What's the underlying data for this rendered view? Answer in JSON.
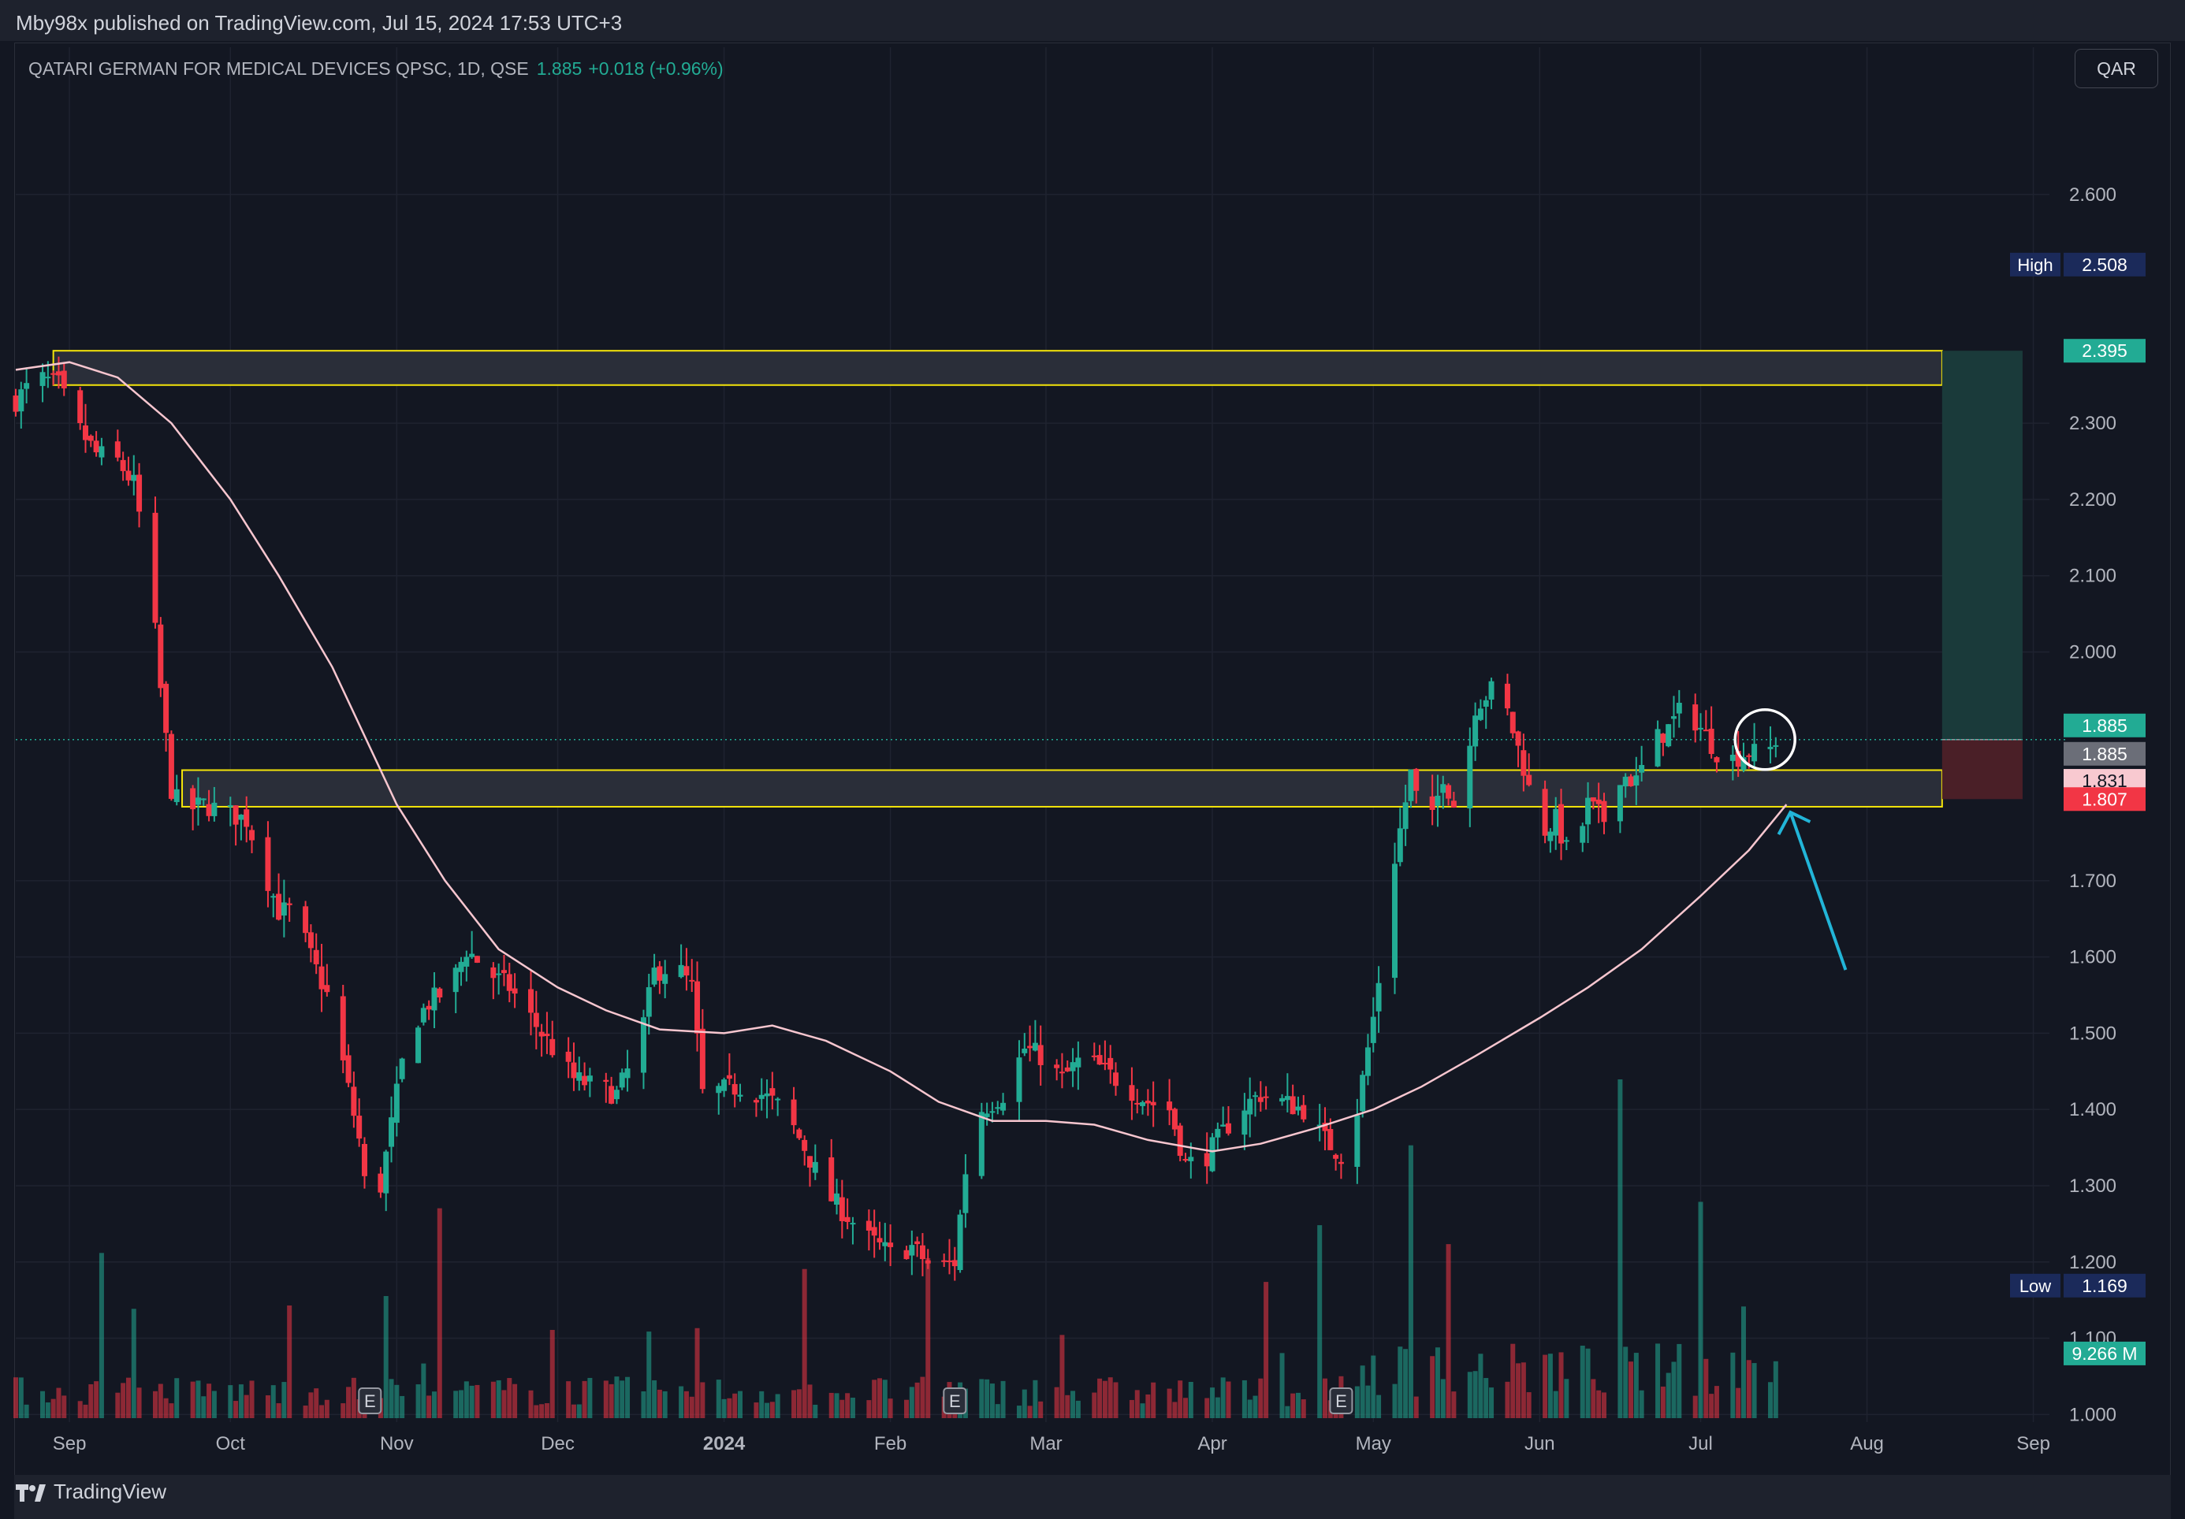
{
  "header": {
    "published_text": "Mby98x published on TradingView.com, Jul 15, 2024 17:53 UTC+3"
  },
  "legend": {
    "symbol": "QATARI GERMAN FOR MEDICAL DEVICES QPSC, 1D, QSE",
    "price": "1.885",
    "change": "+0.018 (+0.96%)"
  },
  "currency_button": "QAR",
  "brand": {
    "name": "TradingView",
    "icon": "tradingview-logo-icon"
  },
  "colors": {
    "background": "#131722",
    "grid": "#1f2330",
    "up": "#22ab94",
    "down": "#f23645",
    "up_volume": "#22ab94",
    "down_volume": "#f23645",
    "zone_border": "#f5e50a",
    "ma_line": "#f7c6cf",
    "arrow": "#22b5d8",
    "target_fill": "#1a3a3a",
    "stop_fill": "#4a1f27"
  },
  "chart_data": {
    "type": "candlestick",
    "title": "QATARI GERMAN FOR MEDICAL DEVICES QPSC, 1D, QSE",
    "ylim": [
      0.99,
      2.7
    ],
    "y_ticks": [
      "2.600",
      "2.300",
      "2.200",
      "2.100",
      "2.000",
      "1.700",
      "1.600",
      "1.500",
      "1.400",
      "1.300",
      "1.200",
      "1.100",
      "1.000"
    ],
    "x_labels": [
      {
        "label": "Sep",
        "date": "2023-09-01"
      },
      {
        "label": "Oct",
        "date": "2023-10-01"
      },
      {
        "label": "Nov",
        "date": "2023-11-01"
      },
      {
        "label": "Dec",
        "date": "2023-12-01"
      },
      {
        "label": "2024",
        "date": "2024-01-01"
      },
      {
        "label": "Feb",
        "date": "2024-02-01"
      },
      {
        "label": "Mar",
        "date": "2024-03-01"
      },
      {
        "label": "Apr",
        "date": "2024-04-01"
      },
      {
        "label": "May",
        "date": "2024-05-01"
      },
      {
        "label": "Jun",
        "date": "2024-06-01"
      },
      {
        "label": "Jul",
        "date": "2024-07-01"
      },
      {
        "label": "Aug",
        "date": "2024-08-01"
      },
      {
        "label": "Sep",
        "date": "2024-09-01"
      }
    ],
    "date_range": [
      "2023-08-22",
      "2024-09-04"
    ],
    "price_path": [
      [
        "2023-08-22",
        2.33
      ],
      [
        "2023-08-26",
        2.36
      ],
      [
        "2023-08-30",
        2.35
      ],
      [
        "2023-09-02",
        2.3
      ],
      [
        "2023-09-06",
        2.26
      ],
      [
        "2023-09-10",
        2.25
      ],
      [
        "2023-09-13",
        2.22
      ],
      [
        "2023-09-16",
        2.1
      ],
      [
        "2023-09-18",
        1.95
      ],
      [
        "2023-09-20",
        1.82
      ],
      [
        "2023-09-22",
        1.79
      ],
      [
        "2023-09-26",
        1.8
      ],
      [
        "2023-09-30",
        1.79
      ],
      [
        "2023-10-04",
        1.78
      ],
      [
        "2023-10-07",
        1.72
      ],
      [
        "2023-10-10",
        1.66
      ],
      [
        "2023-10-13",
        1.66
      ],
      [
        "2023-10-16",
        1.6
      ],
      [
        "2023-10-19",
        1.55
      ],
      [
        "2023-10-22",
        1.46
      ],
      [
        "2023-10-25",
        1.36
      ],
      [
        "2023-10-27",
        1.25
      ],
      [
        "2023-10-29",
        1.3
      ],
      [
        "2023-10-31",
        1.38
      ],
      [
        "2023-11-03",
        1.5
      ],
      [
        "2023-11-07",
        1.54
      ],
      [
        "2023-11-11",
        1.56
      ],
      [
        "2023-11-14",
        1.61
      ],
      [
        "2023-11-18",
        1.58
      ],
      [
        "2023-11-22",
        1.56
      ],
      [
        "2023-11-26",
        1.52
      ],
      [
        "2023-11-30",
        1.48
      ],
      [
        "2023-12-04",
        1.44
      ],
      [
        "2023-12-08",
        1.43
      ],
      [
        "2023-12-12",
        1.42
      ],
      [
        "2023-12-16",
        1.48
      ],
      [
        "2023-12-19",
        1.58
      ],
      [
        "2023-12-23",
        1.59
      ],
      [
        "2023-12-26",
        1.56
      ],
      [
        "2023-12-28",
        1.42
      ],
      [
        "2024-01-04",
        1.43
      ],
      [
        "2024-01-08",
        1.42
      ],
      [
        "2024-01-12",
        1.4
      ],
      [
        "2024-01-16",
        1.35
      ],
      [
        "2024-01-20",
        1.29
      ],
      [
        "2024-01-24",
        1.26
      ],
      [
        "2024-01-28",
        1.23
      ],
      [
        "2024-02-01",
        1.21
      ],
      [
        "2024-02-05",
        1.22
      ],
      [
        "2024-02-09",
        1.19
      ],
      [
        "2024-02-13",
        1.2
      ],
      [
        "2024-02-15",
        1.32
      ],
      [
        "2024-02-18",
        1.4
      ],
      [
        "2024-02-22",
        1.42
      ],
      [
        "2024-02-26",
        1.48
      ],
      [
        "2024-02-29",
        1.47
      ],
      [
        "2024-03-04",
        1.44
      ],
      [
        "2024-03-08",
        1.47
      ],
      [
        "2024-03-12",
        1.45
      ],
      [
        "2024-03-16",
        1.43
      ],
      [
        "2024-03-20",
        1.41
      ],
      [
        "2024-03-24",
        1.4
      ],
      [
        "2024-03-27",
        1.33
      ],
      [
        "2024-03-30",
        1.33
      ],
      [
        "2024-04-02",
        1.36
      ],
      [
        "2024-04-06",
        1.4
      ],
      [
        "2024-04-10",
        1.42
      ],
      [
        "2024-04-14",
        1.41
      ],
      [
        "2024-04-18",
        1.4
      ],
      [
        "2024-04-22",
        1.36
      ],
      [
        "2024-04-25",
        1.34
      ],
      [
        "2024-04-28",
        1.4
      ],
      [
        "2024-05-01",
        1.52
      ],
      [
        "2024-05-03",
        1.62
      ],
      [
        "2024-05-05",
        1.73
      ],
      [
        "2024-05-08",
        1.84
      ],
      [
        "2024-05-11",
        1.75
      ],
      [
        "2024-05-14",
        1.84
      ],
      [
        "2024-05-17",
        1.78
      ],
      [
        "2024-05-20",
        1.93
      ],
      [
        "2024-05-23",
        1.95
      ],
      [
        "2024-05-26",
        1.92
      ],
      [
        "2024-05-29",
        1.85
      ],
      [
        "2024-06-01",
        1.76
      ],
      [
        "2024-06-04",
        1.78
      ],
      [
        "2024-06-07",
        1.72
      ],
      [
        "2024-06-10",
        1.8
      ],
      [
        "2024-06-13",
        1.78
      ],
      [
        "2024-06-16",
        1.84
      ],
      [
        "2024-06-19",
        1.83
      ],
      [
        "2024-06-22",
        1.88
      ],
      [
        "2024-06-25",
        1.9
      ],
      [
        "2024-06-28",
        1.93
      ],
      [
        "2024-07-01",
        1.9
      ],
      [
        "2024-07-04",
        1.87
      ],
      [
        "2024-07-07",
        1.86
      ],
      [
        "2024-07-10",
        1.87
      ],
      [
        "2024-07-13",
        1.86
      ],
      [
        "2024-07-15",
        1.885
      ]
    ],
    "moving_average": [
      [
        "2023-08-22",
        2.37
      ],
      [
        "2023-09-01",
        2.38
      ],
      [
        "2023-09-10",
        2.36
      ],
      [
        "2023-09-20",
        2.3
      ],
      [
        "2023-10-01",
        2.2
      ],
      [
        "2023-10-10",
        2.1
      ],
      [
        "2023-10-20",
        1.98
      ],
      [
        "2023-11-01",
        1.8
      ],
      [
        "2023-11-10",
        1.7
      ],
      [
        "2023-11-20",
        1.61
      ],
      [
        "2023-12-01",
        1.56
      ],
      [
        "2023-12-10",
        1.53
      ],
      [
        "2023-12-20",
        1.505
      ],
      [
        "2024-01-01",
        1.5
      ],
      [
        "2024-01-10",
        1.51
      ],
      [
        "2024-01-20",
        1.49
      ],
      [
        "2024-02-01",
        1.45
      ],
      [
        "2024-02-10",
        1.41
      ],
      [
        "2024-02-20",
        1.385
      ],
      [
        "2024-03-01",
        1.385
      ],
      [
        "2024-03-10",
        1.38
      ],
      [
        "2024-03-20",
        1.36
      ],
      [
        "2024-04-01",
        1.345
      ],
      [
        "2024-04-10",
        1.355
      ],
      [
        "2024-04-20",
        1.375
      ],
      [
        "2024-05-01",
        1.4
      ],
      [
        "2024-05-10",
        1.43
      ],
      [
        "2024-05-20",
        1.47
      ],
      [
        "2024-06-01",
        1.52
      ],
      [
        "2024-06-10",
        1.56
      ],
      [
        "2024-06-20",
        1.61
      ],
      [
        "2024-07-01",
        1.68
      ],
      [
        "2024-07-10",
        1.74
      ],
      [
        "2024-07-17",
        1.8
      ]
    ],
    "zones": [
      {
        "name": "resistance",
        "top": 2.395,
        "bottom": 2.35,
        "from": "2023-08-29",
        "to": "2024-08-15"
      },
      {
        "name": "support",
        "top": 1.845,
        "bottom": 1.797,
        "from": "2023-09-22",
        "to": "2024-08-15"
      }
    ],
    "position": {
      "entry": 1.885,
      "target": 2.395,
      "stop": 1.807,
      "from": "2024-08-15",
      "to": "2024-08-30"
    },
    "price_labels": [
      {
        "label": "High",
        "value": "2.508",
        "price": 2.508,
        "color": "#1b2a5a"
      },
      {
        "label": "",
        "value": "2.395",
        "price": 2.395,
        "color": "#22ab94"
      },
      {
        "label": "",
        "value": "1.885",
        "price": 1.885,
        "color": "#22ab94",
        "offset": -18
      },
      {
        "label": "",
        "value": "1.885",
        "price": 1.885,
        "color": "#6b6e78",
        "offset": 18
      },
      {
        "label": "",
        "value": "1.831",
        "price": 1.831,
        "color": "#f8c9d0",
        "text": "#131722"
      },
      {
        "label": "",
        "value": "1.807",
        "price": 1.807,
        "color": "#f23645"
      },
      {
        "label": "Low",
        "value": "1.169",
        "price": 1.169,
        "color": "#1b2a5a"
      },
      {
        "label": "",
        "value": "9.266 M",
        "price": 1.08,
        "color": "#22ab94"
      }
    ],
    "earnings_markers": [
      "2023-10-27",
      "2024-02-13",
      "2024-04-25"
    ],
    "highlight_circle": {
      "date": "2024-07-13",
      "price": 1.885
    },
    "current_price": 1.885
  }
}
